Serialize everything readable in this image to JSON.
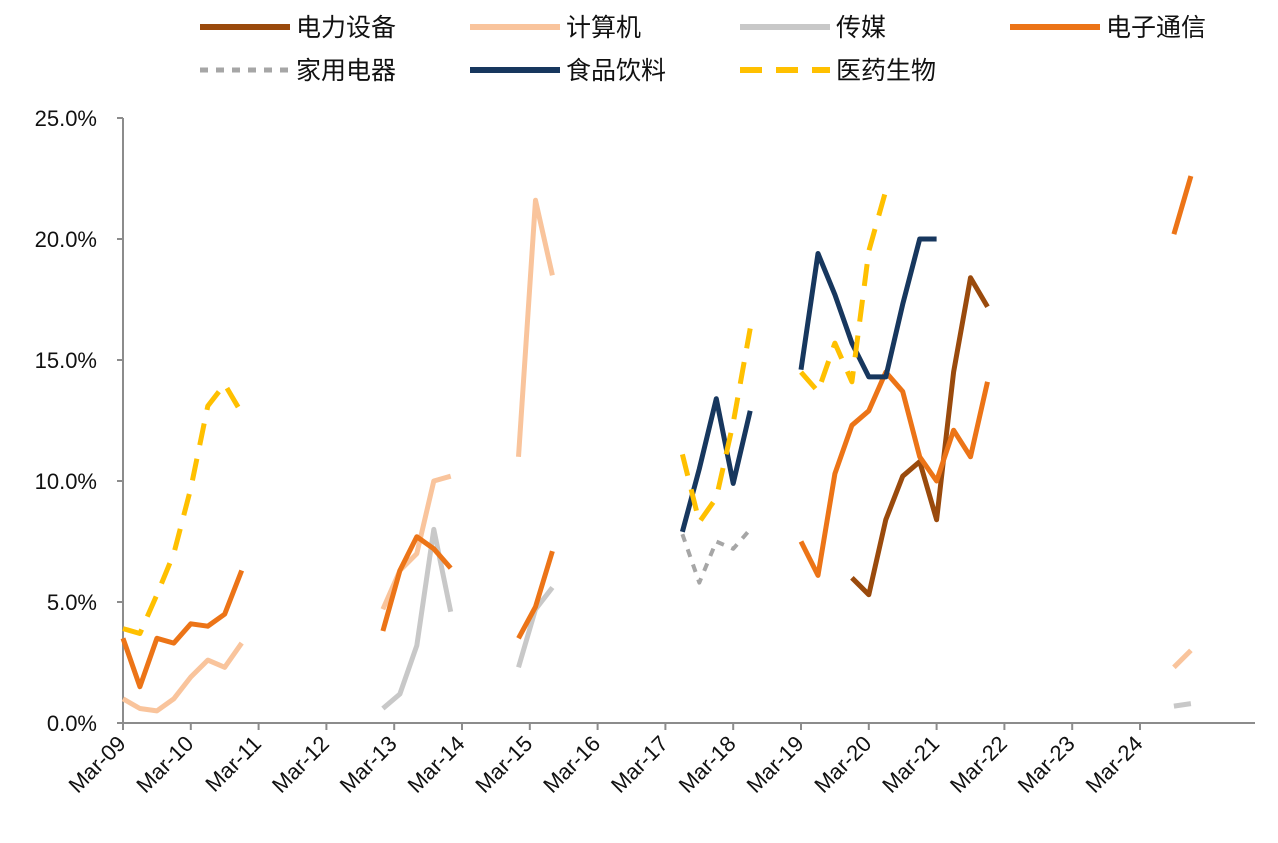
{
  "chart_data": {
    "type": "line",
    "title": "",
    "xlabel": "",
    "ylabel": "",
    "ylim": [
      0,
      0.25
    ],
    "yticks": [
      0,
      0.05,
      0.1,
      0.15,
      0.2,
      0.25
    ],
    "ytick_labels": [
      "0.0%",
      "5.0%",
      "10.0%",
      "15.0%",
      "20.0%",
      "25.0%"
    ],
    "xlim": [
      "2009-03",
      "2024-12"
    ],
    "xticks": [
      "2009-03",
      "2010-03",
      "2011-03",
      "2012-03",
      "2013-03",
      "2014-03",
      "2015-03",
      "2016-03",
      "2017-03",
      "2018-03",
      "2019-03",
      "2020-03",
      "2021-03",
      "2022-03",
      "2023-03",
      "2024-03"
    ],
    "xtick_labels": [
      "Mar-09",
      "Mar-10",
      "Mar-11",
      "Mar-12",
      "Mar-13",
      "Mar-14",
      "Mar-15",
      "Mar-16",
      "Mar-17",
      "Mar-18",
      "Mar-19",
      "Mar-20",
      "Mar-21",
      "Mar-22",
      "Mar-23",
      "Mar-24"
    ],
    "grid": false,
    "legend_position": "top",
    "series": [
      {
        "name": "电力设备",
        "color": "#9a4a0c",
        "dash": "solid",
        "width": 5,
        "segments": [
          [
            [
              "2019-12",
              0.06
            ],
            [
              "2020-03",
              0.053
            ],
            [
              "2020-06",
              0.084
            ],
            [
              "2020-09",
              0.102
            ],
            [
              "2020-12",
              0.108
            ],
            [
              "2021-03",
              0.084
            ],
            [
              "2021-06",
              0.145
            ],
            [
              "2021-09",
              0.184
            ],
            [
              "2021-12",
              0.172
            ]
          ]
        ]
      },
      {
        "name": "计算机",
        "color": "#f9c49c",
        "dash": "solid",
        "width": 5,
        "segments": [
          [
            [
              "2009-03",
              0.01
            ],
            [
              "2009-06",
              0.006
            ],
            [
              "2009-09",
              0.005
            ],
            [
              "2009-12",
              0.01
            ],
            [
              "2010-03",
              0.019
            ],
            [
              "2010-06",
              0.026
            ],
            [
              "2010-09",
              0.023
            ],
            [
              "2010-12",
              0.033
            ]
          ],
          [
            [
              "2013-01",
              0.047
            ],
            [
              "2013-04",
              0.063
            ],
            [
              "2013-07",
              0.07
            ],
            [
              "2013-10",
              0.1
            ],
            [
              "2014-01",
              0.102
            ]
          ],
          [
            [
              "2015-01",
              0.11
            ],
            [
              "2015-04",
              0.216
            ],
            [
              "2015-07",
              0.185
            ]
          ],
          [
            [
              "2024-09",
              0.023
            ],
            [
              "2024-12",
              0.03
            ]
          ]
        ]
      },
      {
        "name": "传媒",
        "color": "#c8c8c8",
        "dash": "solid",
        "width": 5,
        "segments": [
          [
            [
              "2013-01",
              0.006
            ],
            [
              "2013-04",
              0.012
            ],
            [
              "2013-07",
              0.032
            ],
            [
              "2013-10",
              0.08
            ],
            [
              "2014-01",
              0.046
            ]
          ],
          [
            [
              "2015-01",
              0.023
            ],
            [
              "2015-04",
              0.047
            ],
            [
              "2015-07",
              0.056
            ]
          ],
          [
            [
              "2024-09",
              0.007
            ],
            [
              "2024-12",
              0.008
            ]
          ]
        ]
      },
      {
        "name": "电子通信",
        "color": "#ec7417",
        "dash": "solid",
        "width": 5,
        "segments": [
          [
            [
              "2009-03",
              0.035
            ],
            [
              "2009-06",
              0.015
            ],
            [
              "2009-09",
              0.035
            ],
            [
              "2009-12",
              0.033
            ],
            [
              "2010-03",
              0.041
            ],
            [
              "2010-06",
              0.04
            ],
            [
              "2010-09",
              0.045
            ],
            [
              "2010-12",
              0.063
            ]
          ],
          [
            [
              "2013-01",
              0.038
            ],
            [
              "2013-04",
              0.063
            ],
            [
              "2013-07",
              0.077
            ],
            [
              "2013-10",
              0.072
            ],
            [
              "2014-01",
              0.064
            ]
          ],
          [
            [
              "2015-01",
              0.035
            ],
            [
              "2015-04",
              0.048
            ],
            [
              "2015-07",
              0.071
            ]
          ],
          [
            [
              "2019-03",
              0.075
            ],
            [
              "2019-06",
              0.061
            ],
            [
              "2019-09",
              0.103
            ],
            [
              "2019-12",
              0.123
            ],
            [
              "2020-03",
              0.129
            ],
            [
              "2020-06",
              0.145
            ],
            [
              "2020-09",
              0.137
            ],
            [
              "2020-12",
              0.11
            ],
            [
              "2021-03",
              0.1
            ],
            [
              "2021-06",
              0.121
            ],
            [
              "2021-09",
              0.11
            ],
            [
              "2021-12",
              0.141
            ]
          ],
          [
            [
              "2024-09",
              0.202
            ],
            [
              "2024-12",
              0.226
            ]
          ]
        ]
      },
      {
        "name": "家用电器",
        "color": "#a6a6a6",
        "dash": "dot",
        "width": 4,
        "segments": [
          [
            [
              "2017-06",
              0.078
            ],
            [
              "2017-09",
              0.058
            ],
            [
              "2017-12",
              0.075
            ],
            [
              "2018-03",
              0.072
            ],
            [
              "2018-06",
              0.08
            ]
          ]
        ]
      },
      {
        "name": "食品饮料",
        "color": "#17375e",
        "dash": "solid",
        "width": 5,
        "segments": [
          [
            [
              "2017-06",
              0.079
            ],
            [
              "2017-09",
              0.105
            ],
            [
              "2017-12",
              0.134
            ],
            [
              "2018-03",
              0.099
            ],
            [
              "2018-06",
              0.129
            ]
          ],
          [
            [
              "2019-03",
              0.146
            ],
            [
              "2019-06",
              0.194
            ],
            [
              "2019-09",
              0.177
            ],
            [
              "2019-12",
              0.157
            ],
            [
              "2020-03",
              0.143
            ],
            [
              "2020-06",
              0.143
            ],
            [
              "2020-09",
              0.173
            ],
            [
              "2020-12",
              0.2
            ],
            [
              "2021-03",
              0.2
            ]
          ]
        ]
      },
      {
        "name": "医药生物",
        "color": "#ffc000",
        "dash": "dash",
        "width": 5,
        "segments": [
          [
            [
              "2009-03",
              0.039
            ],
            [
              "2009-06",
              0.037
            ],
            [
              "2009-09",
              0.053
            ],
            [
              "2009-12",
              0.07
            ],
            [
              "2010-03",
              0.097
            ],
            [
              "2010-06",
              0.131
            ],
            [
              "2010-09",
              0.14
            ],
            [
              "2010-12",
              0.128
            ]
          ],
          [
            [
              "2017-06",
              0.111
            ],
            [
              "2017-09",
              0.083
            ],
            [
              "2017-12",
              0.093
            ],
            [
              "2018-03",
              0.124
            ],
            [
              "2018-06",
              0.163
            ]
          ],
          [
            [
              "2019-03",
              0.145
            ],
            [
              "2019-06",
              0.137
            ],
            [
              "2019-09",
              0.157
            ],
            [
              "2019-12",
              0.141
            ],
            [
              "2020-03",
              0.195
            ],
            [
              "2020-06",
              0.22
            ]
          ]
        ]
      }
    ]
  }
}
